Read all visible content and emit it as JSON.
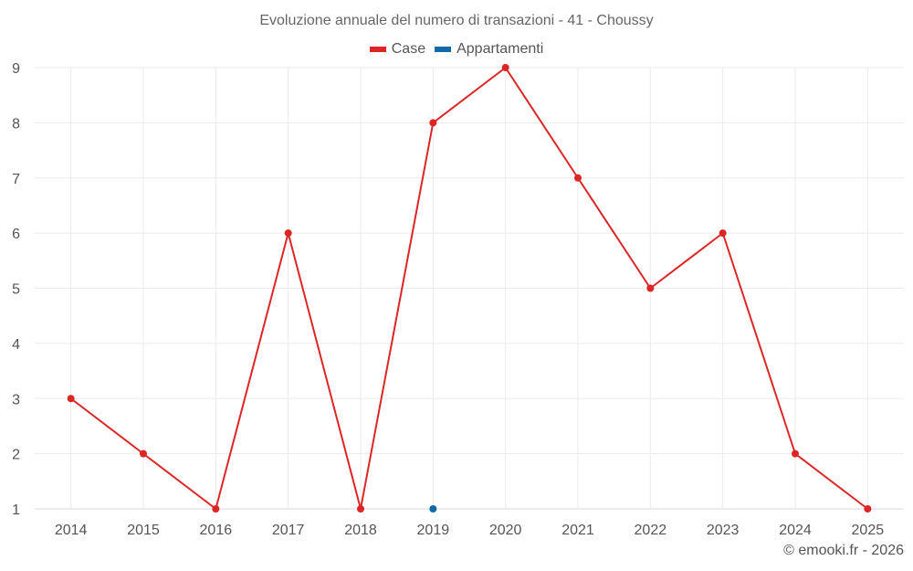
{
  "title": "Evoluzione annuale del numero di transazioni - 41 - Choussy",
  "legend": [
    {
      "label": "Case",
      "color": "#dc2626"
    },
    {
      "label": "Appartamenti",
      "color": "#0e6aa8"
    }
  ],
  "credit": "© emooki.fr - 2026",
  "colors": {
    "grid": "#ebebeb",
    "axis_text": "#555555",
    "title_text": "#666666"
  },
  "chart_data": {
    "type": "line",
    "title": "Evoluzione annuale del numero di transazioni - 41 - Choussy",
    "xlabel": "",
    "ylabel": "",
    "categories": [
      "2014",
      "2015",
      "2016",
      "2017",
      "2018",
      "2019",
      "2020",
      "2021",
      "2022",
      "2023",
      "2024",
      "2025"
    ],
    "series": [
      {
        "name": "Case",
        "color": "#dc2626",
        "values": [
          3,
          2,
          1,
          6,
          1,
          8,
          9,
          7,
          5,
          6,
          2,
          1
        ]
      },
      {
        "name": "Appartamenti",
        "color": "#0e6aa8",
        "values": [
          null,
          null,
          null,
          null,
          null,
          1,
          null,
          null,
          null,
          null,
          null,
          null
        ]
      }
    ],
    "ylim": [
      1,
      9
    ],
    "yticks": [
      1,
      2,
      3,
      4,
      5,
      6,
      7,
      8,
      9
    ],
    "grid": true,
    "legend_position": "top"
  }
}
